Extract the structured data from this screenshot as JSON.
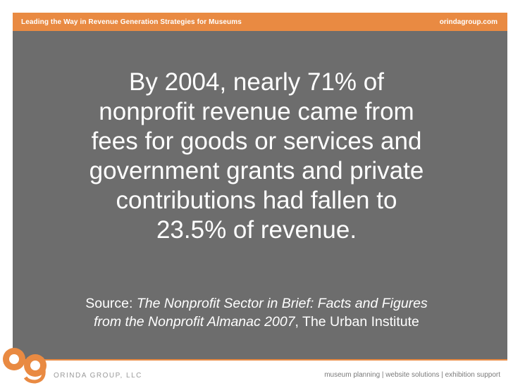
{
  "header": {
    "tagline": "Leading the Way in Revenue Generation Strategies for Museums",
    "site": "orindagroup.com"
  },
  "slide": {
    "headline_lines": [
      "By 2004, nearly 71% of",
      "nonprofit revenue came from",
      "fees for goods or services and",
      "government grants and private",
      "contributions had fallen to",
      "23.5% of revenue."
    ],
    "source_prefix": "Source: ",
    "source_title": "The Nonprofit Sector in Brief: Facts and Figures from the Nonprofit Almanac 2007",
    "source_suffix": ", The Urban Institute"
  },
  "footer": {
    "logo_letters": "og",
    "company": "ORINDA GROUP, LLC",
    "services": "museum planning | website solutions | exhibition support"
  },
  "colors": {
    "accent": "#e98a42",
    "panel": "#6d6d6d"
  }
}
